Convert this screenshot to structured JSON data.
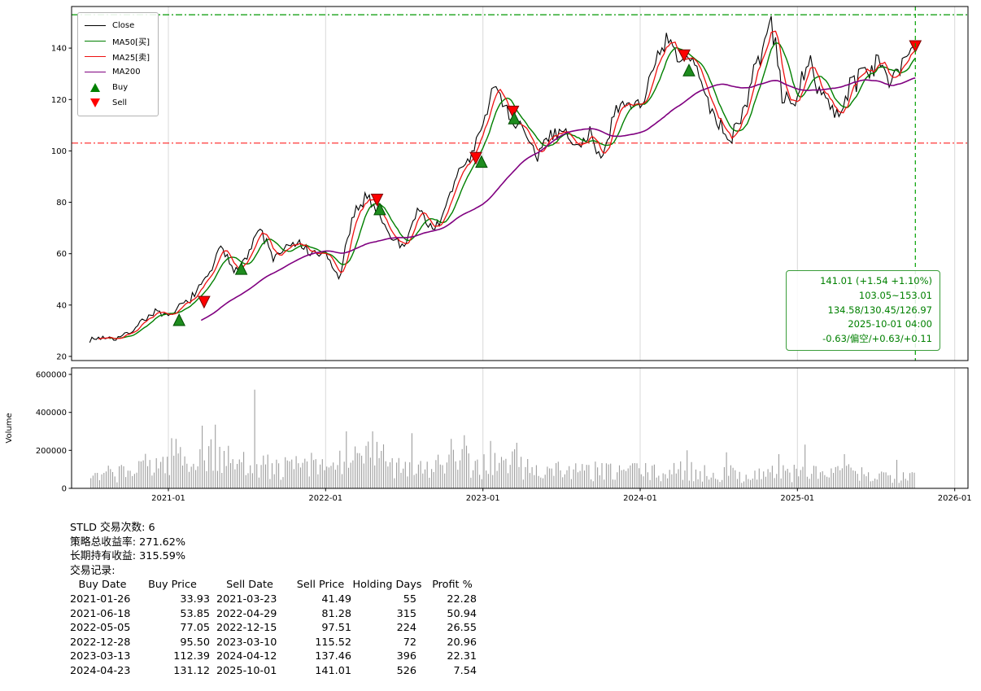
{
  "page": {
    "background": "#ffffff"
  },
  "legend": {
    "items": [
      {
        "label": "Close",
        "color": "#000000",
        "marker": "line"
      },
      {
        "label": "MA50[买]",
        "color": "#008000",
        "marker": "line"
      },
      {
        "label": "MA25[卖]",
        "color": "#ee1111",
        "marker": "line"
      },
      {
        "label": "MA200",
        "color": "#800080",
        "marker": "line"
      },
      {
        "label": "Buy",
        "color": "#008000",
        "marker": "triangle-up"
      },
      {
        "label": "Sell",
        "color": "#ff0000",
        "marker": "triangle-down"
      }
    ]
  },
  "annotation": {
    "color": "#008000",
    "lines": [
      "141.01 (+1.54 +1.10%)",
      "103.05~153.01",
      "134.58/130.45/126.97",
      "2025-10-01 04:00",
      "-0.63/偏空/+0.63/+0.11"
    ]
  },
  "stats_lines": [
    "STLD 交易次数: 6",
    "策略总收益率: 271.62%",
    "长期持有收益: 315.59%",
    "交易记录:"
  ],
  "trade_table": {
    "headers": [
      "Buy Date",
      "Buy Price",
      "Sell Date",
      "Sell Price",
      "Holding Days",
      "Profit %"
    ]
  },
  "chart_data": {
    "type": "line",
    "title": "",
    "x_tick_labels": [
      "2021-01",
      "2022-01",
      "2023-01",
      "2024-01",
      "2025-01",
      "2026-01"
    ],
    "price_ticks": [
      20,
      40,
      60,
      80,
      100,
      120,
      140
    ],
    "price_range_visible": [
      18.4,
      156.2
    ],
    "volume_ticks": [
      0,
      200000,
      400000,
      600000
    ],
    "volume_label": "Volume",
    "volume_range_visible": [
      0,
      634000
    ],
    "ref_lines": {
      "upper": 153.01,
      "upper_color": "#009900",
      "lower": 103.05,
      "lower_color": "#ff2222",
      "vline_date": "2025-10-01",
      "vline_color": "#00a000"
    },
    "series": {
      "start_month": "2020-07",
      "points_per_month": 6,
      "close_monthly": [
        26.5,
        27.5,
        27.0,
        29,
        34,
        37.5,
        35,
        40,
        44,
        51,
        62,
        54,
        59,
        70,
        58,
        62,
        64,
        59,
        60,
        50,
        72,
        83,
        77,
        66,
        63,
        78,
        70,
        74,
        91,
        97,
        110,
        127,
        113,
        108,
        97,
        106,
        109,
        101,
        107,
        99,
        112,
        118,
        119,
        129,
        143,
        134,
        136,
        122,
        110,
        105,
        118,
        135,
        150,
        118,
        122,
        133,
        122,
        112,
        126,
        131,
        134,
        129,
        136,
        141.01
      ]
    },
    "moving_averages": {
      "ma25": {
        "color": "#ee1111",
        "window_points": 5
      },
      "ma50": {
        "color": "#008000",
        "window_points": 10
      },
      "ma200": {
        "color": "#800080",
        "window_points": 52
      }
    },
    "close_color": "#000000",
    "volume_bar_color": "#9e9e9e",
    "volume_monthly_avg": [
      60000,
      80000,
      90000,
      100000,
      150000,
      140000,
      180000,
      150000,
      200000,
      180000,
      150000,
      140000,
      160000,
      120000,
      110000,
      120000,
      130000,
      110000,
      130000,
      140000,
      150000,
      180000,
      160000,
      150000,
      140000,
      120000,
      130000,
      140000,
      150000,
      120000,
      140000,
      130000,
      150000,
      110000,
      100000,
      110000,
      100000,
      90000,
      100000,
      90000,
      100000,
      110000,
      90000,
      85000,
      90000,
      100000,
      85000,
      80000,
      90000,
      80000,
      75000,
      85000,
      90000,
      85000,
      90000,
      85000,
      80000,
      100000,
      75000,
      70000,
      75000,
      80000,
      85000,
      60000
    ],
    "volume_spikes": [
      [
        6,
        260000
      ],
      [
        8,
        330000
      ],
      [
        9,
        335000
      ],
      [
        12,
        520000
      ],
      [
        19,
        300000
      ],
      [
        21,
        300000
      ],
      [
        24,
        290000
      ],
      [
        27,
        260000
      ],
      [
        28,
        280000
      ],
      [
        30,
        250000
      ],
      [
        32,
        240000
      ],
      [
        45,
        200000
      ],
      [
        48,
        190000
      ],
      [
        52,
        180000
      ],
      [
        54,
        230000
      ],
      [
        57,
        180000
      ],
      [
        61,
        150000
      ]
    ],
    "trades": [
      {
        "buy_date": "2021-01-26",
        "buy_price": 33.93,
        "sell_date": "2021-03-23",
        "sell_price": 41.49,
        "holding_days": 55,
        "profit_pct": 22.28
      },
      {
        "buy_date": "2021-06-18",
        "buy_price": 53.85,
        "sell_date": "2022-04-29",
        "sell_price": 81.28,
        "holding_days": 315,
        "profit_pct": 50.94
      },
      {
        "buy_date": "2022-05-05",
        "buy_price": 77.05,
        "sell_date": "2022-12-15",
        "sell_price": 97.51,
        "holding_days": 224,
        "profit_pct": 26.55
      },
      {
        "buy_date": "2022-12-28",
        "buy_price": 95.5,
        "sell_date": "2023-03-10",
        "sell_price": 115.52,
        "holding_days": 72,
        "profit_pct": 20.96
      },
      {
        "buy_date": "2023-03-13",
        "buy_price": 112.39,
        "sell_date": "2024-04-12",
        "sell_price": 137.46,
        "holding_days": 396,
        "profit_pct": 22.31
      },
      {
        "buy_date": "2024-04-23",
        "buy_price": 131.12,
        "sell_date": "2025-10-01",
        "sell_price": 141.01,
        "holding_days": 526,
        "profit_pct": 7.54
      }
    ],
    "marker_colors": {
      "buy_fill": "#1e8c1e",
      "buy_edge": "#004d00",
      "sell_fill": "#ff0000",
      "sell_edge": "#7a0000"
    }
  }
}
